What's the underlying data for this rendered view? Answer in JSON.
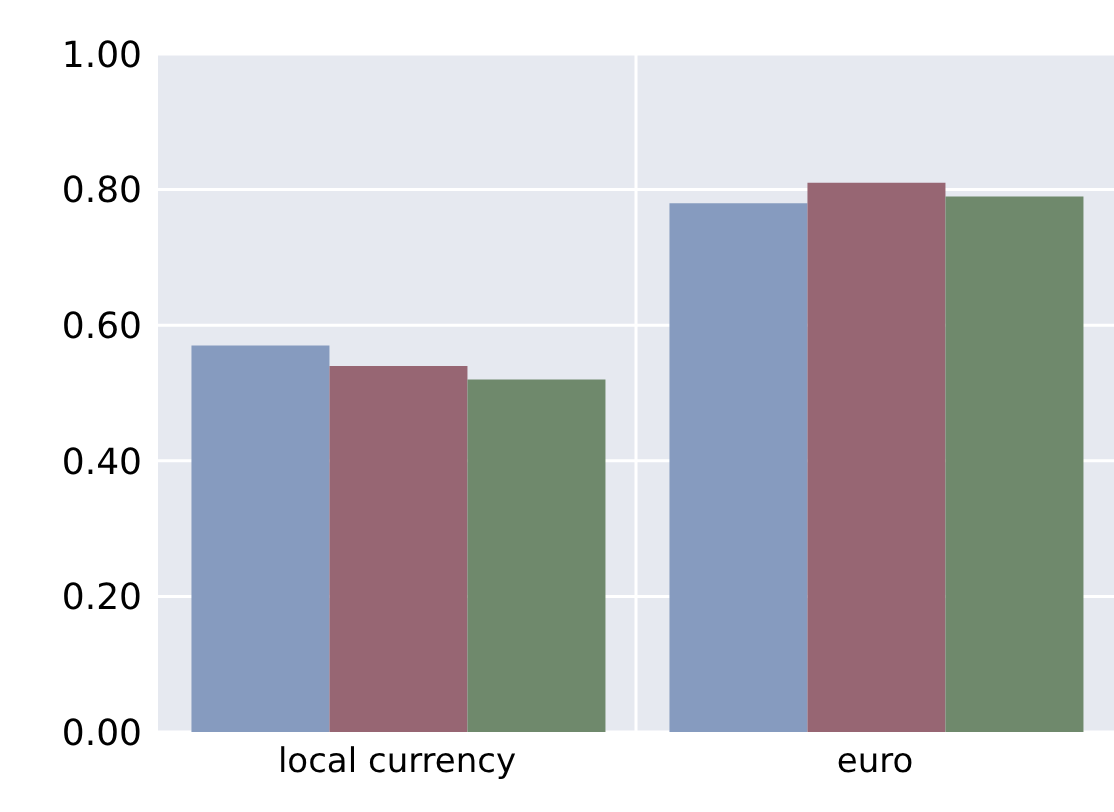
{
  "chart_data": {
    "type": "bar",
    "categories": [
      "local currency",
      "euro"
    ],
    "series": [
      {
        "color": "#869bbf",
        "values": [
          0.57,
          0.78
        ]
      },
      {
        "color": "#976673",
        "values": [
          0.54,
          0.81
        ]
      },
      {
        "color": "#6f896c",
        "values": [
          0.52,
          0.79
        ]
      }
    ],
    "ylim": [
      0,
      1
    ],
    "yticks": [
      {
        "value": 0,
        "label": "0.00"
      },
      {
        "value": 0.2,
        "label": "0.20"
      },
      {
        "value": 0.4,
        "label": "0.40"
      },
      {
        "value": 0.6,
        "label": "0.60"
      },
      {
        "value": 0.8,
        "label": "0.80"
      },
      {
        "value": 1,
        "label": "1.00"
      }
    ],
    "grid": true
  }
}
